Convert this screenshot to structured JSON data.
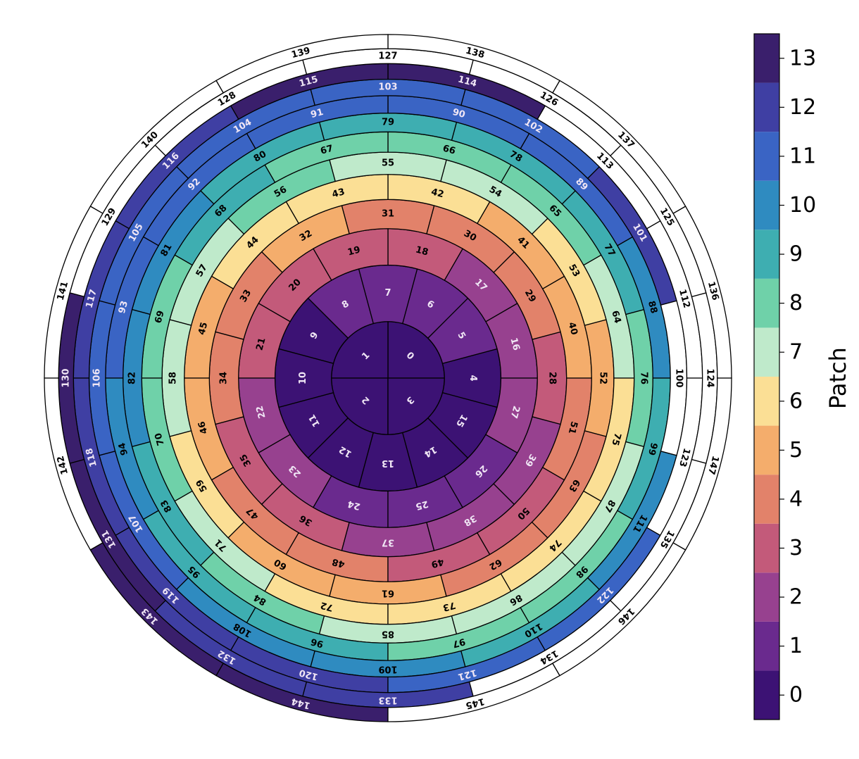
{
  "chart_data": {
    "type": "patch",
    "cells": [
      0,
      1,
      2,
      3,
      4,
      5,
      6,
      7,
      8,
      9,
      10,
      11,
      12,
      13,
      14,
      15,
      16,
      17,
      18,
      19,
      20,
      21,
      22,
      23,
      24,
      25,
      26,
      27,
      28,
      29,
      30,
      31,
      32,
      33,
      34,
      35,
      36,
      37,
      38,
      39,
      40,
      41,
      42,
      43,
      44,
      45,
      46,
      47,
      48,
      49,
      50,
      51,
      52,
      53,
      54,
      55,
      56,
      57,
      58,
      59,
      60,
      61,
      62,
      63,
      64,
      65,
      66,
      67,
      68,
      69,
      70,
      71,
      72,
      73,
      74,
      75,
      76,
      77,
      78,
      79,
      80,
      81,
      82,
      83,
      84,
      85,
      86,
      87,
      88,
      89,
      90,
      91,
      92,
      93,
      94,
      95,
      96,
      97,
      98,
      99,
      100,
      101,
      102,
      103,
      104,
      105,
      106,
      107,
      108,
      109,
      110,
      111,
      112,
      113,
      114,
      115,
      116,
      117,
      118,
      119,
      120,
      121,
      122,
      123,
      124,
      125,
      126,
      127,
      128,
      129,
      130,
      131,
      132,
      133,
      134,
      135,
      136,
      137,
      138,
      139,
      140,
      141,
      142,
      143,
      144,
      145,
      146,
      147
    ],
    "patches": [
      0,
      0,
      0,
      0,
      0,
      1,
      1,
      1,
      1,
      0,
      0,
      0,
      0,
      0,
      0,
      0,
      2,
      2,
      3,
      3,
      3,
      3,
      2,
      2,
      1,
      1,
      1,
      2,
      3,
      4,
      4,
      4,
      5,
      4,
      4,
      3,
      3,
      2,
      2,
      2,
      5,
      5,
      6,
      6,
      6,
      5,
      5,
      4,
      4,
      3,
      3,
      4,
      5,
      6,
      7,
      7,
      8,
      7,
      7,
      6,
      5,
      5,
      4,
      4,
      7,
      8,
      8,
      8,
      9,
      8,
      8,
      7,
      6,
      6,
      6,
      6,
      8,
      9,
      9,
      9,
      9,
      10,
      10,
      9,
      8,
      7,
      7,
      7,
      10,
      11,
      11,
      11,
      11,
      11,
      10,
      9,
      9,
      8,
      8,
      9,
      null,
      12,
      11,
      11,
      11,
      11,
      11,
      11,
      10,
      10,
      9,
      10,
      null,
      null,
      13,
      13,
      12,
      12,
      12,
      12,
      12,
      11,
      11,
      null,
      null,
      null,
      null,
      null,
      null,
      null,
      13,
      13,
      12,
      12,
      null,
      null,
      null,
      null,
      null,
      null,
      null,
      null,
      null,
      13,
      13,
      null,
      null,
      null
    ],
    "colorbar": {
      "label": "Patch",
      "clim": [
        -0.5,
        13.5
      ],
      "ticks": [
        0,
        1,
        2,
        3,
        4,
        5,
        6,
        7,
        8,
        9,
        10,
        11,
        12,
        13
      ],
      "colors": [
        "#3c1274",
        "#6a2a8e",
        "#97418f",
        "#c35a7a",
        "#e2826a",
        "#f4ad6c",
        "#fbdf95",
        "#bfeacb",
        "#6fd1a9",
        "#3eaeb1",
        "#2f8bc0",
        "#3a64c4",
        "#3f3fa3",
        "#3a1f6c"
      ]
    }
  }
}
